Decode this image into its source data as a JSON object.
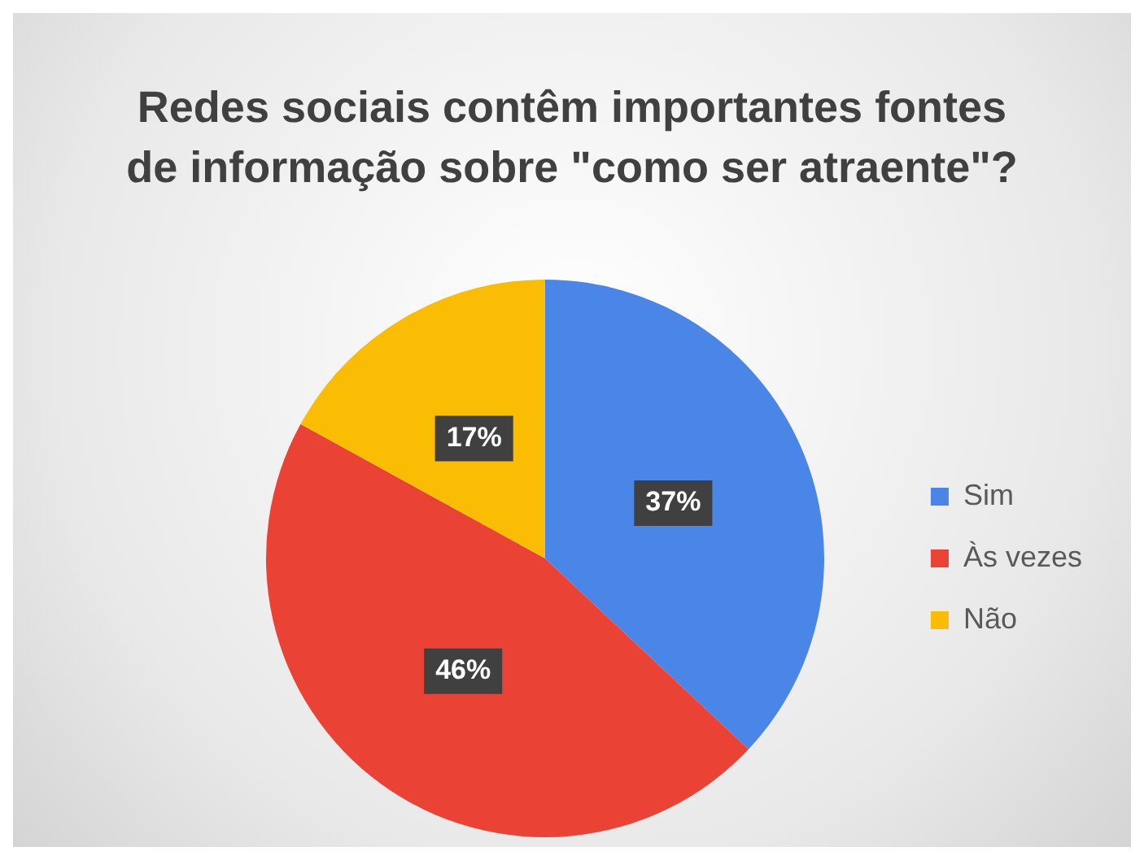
{
  "chart_data": {
    "type": "pie",
    "title": "Redes sociais contêm importantes fontes de informação sobre \"como ser atraente\"?",
    "categories": [
      "Sim",
      "Às vezes",
      "Não"
    ],
    "values": [
      37,
      46,
      17
    ],
    "value_labels": [
      "37%",
      "46%",
      "17%"
    ],
    "colors": [
      "#4a86e8",
      "#ea4335",
      "#fbbc04"
    ],
    "legend": "right"
  }
}
